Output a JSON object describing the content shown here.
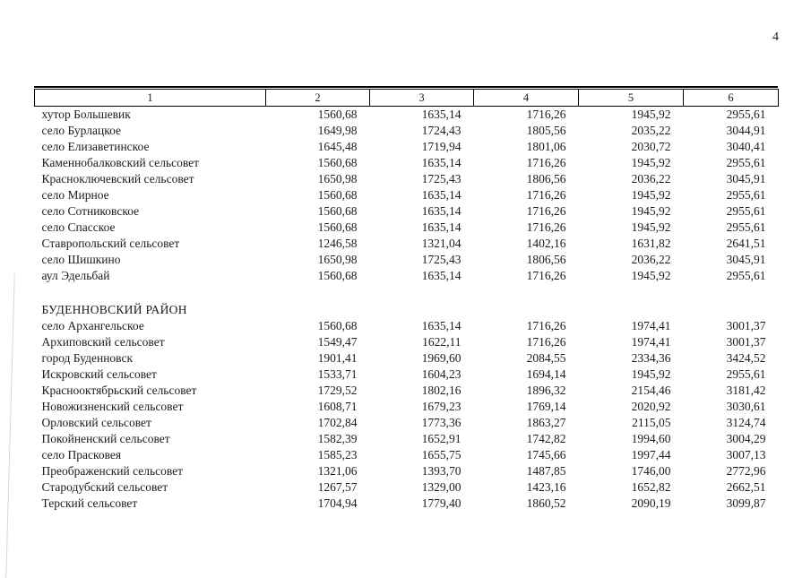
{
  "page": {
    "number": "4"
  },
  "table": {
    "headers": [
      "1",
      "2",
      "3",
      "4",
      "5",
      "6"
    ],
    "sections": [
      {
        "title": "",
        "rows": [
          {
            "name": "хутор Большевик",
            "values": [
              "1560,68",
              "1635,14",
              "1716,26",
              "1945,92",
              "2955,61"
            ]
          },
          {
            "name": "село Бурлацкое",
            "values": [
              "1649,98",
              "1724,43",
              "1805,56",
              "2035,22",
              "3044,91"
            ]
          },
          {
            "name": "село Елизаветинское",
            "values": [
              "1645,48",
              "1719,94",
              "1801,06",
              "2030,72",
              "3040,41"
            ]
          },
          {
            "name": "Каменнобалковский сельсовет",
            "values": [
              "1560,68",
              "1635,14",
              "1716,26",
              "1945,92",
              "2955,61"
            ]
          },
          {
            "name": "Красноключевский сельсовет",
            "values": [
              "1650,98",
              "1725,43",
              "1806,56",
              "2036,22",
              "3045,91"
            ]
          },
          {
            "name": "село Мирное",
            "values": [
              "1560,68",
              "1635,14",
              "1716,26",
              "1945,92",
              "2955,61"
            ]
          },
          {
            "name": "село Сотниковское",
            "values": [
              "1560,68",
              "1635,14",
              "1716,26",
              "1945,92",
              "2955,61"
            ]
          },
          {
            "name": "село Спасское",
            "values": [
              "1560,68",
              "1635,14",
              "1716,26",
              "1945,92",
              "2955,61"
            ]
          },
          {
            "name": "Ставропольский сельсовет",
            "values": [
              "1246,58",
              "1321,04",
              "1402,16",
              "1631,82",
              "2641,51"
            ]
          },
          {
            "name": "село Шишкино",
            "values": [
              "1650,98",
              "1725,43",
              "1806,56",
              "2036,22",
              "3045,91"
            ]
          },
          {
            "name": "аул Эдельбай",
            "values": [
              "1560,68",
              "1635,14",
              "1716,26",
              "1945,92",
              "2955,61"
            ]
          }
        ]
      },
      {
        "title": "БУДЕННОВСКИЙ РАЙОН",
        "rows": [
          {
            "name": "село Архангельское",
            "values": [
              "1560,68",
              "1635,14",
              "1716,26",
              "1974,41",
              "3001,37"
            ]
          },
          {
            "name": "Архиповский сельсовет",
            "values": [
              "1549,47",
              "1622,11",
              "1716,26",
              "1974,41",
              "3001,37"
            ]
          },
          {
            "name": "город Буденновск",
            "values": [
              "1901,41",
              "1969,60",
              "2084,55",
              "2334,36",
              "3424,52"
            ]
          },
          {
            "name": "Искровский сельсовет",
            "values": [
              "1533,71",
              "1604,23",
              "1694,14",
              "1945,92",
              "2955,61"
            ]
          },
          {
            "name": "Краснооктябрьский сельсовет",
            "values": [
              "1729,52",
              "1802,16",
              "1896,32",
              "2154,46",
              "3181,42"
            ]
          },
          {
            "name": "Новожизненский сельсовет",
            "values": [
              "1608,71",
              "1679,23",
              "1769,14",
              "2020,92",
              "3030,61"
            ]
          },
          {
            "name": "Орловский сельсовет",
            "values": [
              "1702,84",
              "1773,36",
              "1863,27",
              "2115,05",
              "3124,74"
            ]
          },
          {
            "name": "Покойненский сельсовет",
            "values": [
              "1582,39",
              "1652,91",
              "1742,82",
              "1994,60",
              "3004,29"
            ]
          },
          {
            "name": "село Прасковея",
            "values": [
              "1585,23",
              "1655,75",
              "1745,66",
              "1997,44",
              "3007,13"
            ]
          },
          {
            "name": "Преображенский сельсовет",
            "values": [
              "1321,06",
              "1393,70",
              "1487,85",
              "1746,00",
              "2772,96"
            ]
          },
          {
            "name": "Стародубский сельсовет",
            "values": [
              "1267,57",
              "1329,00",
              "1423,16",
              "1652,82",
              "2662,51"
            ]
          },
          {
            "name": "Терский сельсовет",
            "values": [
              "1704,94",
              "1779,40",
              "1860,52",
              "2090,19",
              "3099,87"
            ]
          }
        ]
      }
    ]
  }
}
